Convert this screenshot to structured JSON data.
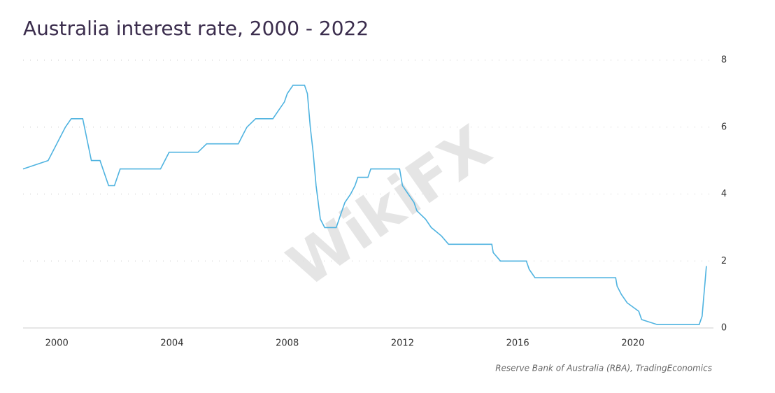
{
  "chart_data": {
    "type": "line",
    "title": "Australia interest rate, 2000 - 2022",
    "source": "Reserve Bank of Australia (RBA), TradingEconomics",
    "watermark": "WikiFX",
    "x": [
      1998.83,
      1999.7,
      2000.3,
      2000.5,
      2000.9,
      2001.2,
      2001.5,
      2001.8,
      2002.0,
      2002.2,
      2003.6,
      2003.9,
      2004.9,
      2005.2,
      2006.3,
      2006.45,
      2006.6,
      2006.9,
      2007.5,
      2007.7,
      2007.9,
      2008.0,
      2008.2,
      2008.6,
      2008.7,
      2008.8,
      2008.9,
      2009.0,
      2009.15,
      2009.3,
      2009.7,
      2009.8,
      2009.9,
      2010.0,
      2010.2,
      2010.35,
      2010.45,
      2010.8,
      2010.9,
      2011.9,
      2011.95,
      2012.0,
      2012.4,
      2012.5,
      2012.8,
      2013.0,
      2013.35,
      2013.6,
      2015.1,
      2015.15,
      2015.4,
      2016.3,
      2016.4,
      2016.6,
      2019.4,
      2019.45,
      2019.6,
      2019.8,
      2020.2,
      2020.3,
      2020.85,
      2022.3,
      2022.4,
      2022.45,
      2022.5,
      2022.55
    ],
    "series": [
      {
        "name": "Interest rate",
        "color": "#4fb3e0",
        "values": [
          4.75,
          5.0,
          6.0,
          6.25,
          6.25,
          5.0,
          5.0,
          4.25,
          4.25,
          4.75,
          4.75,
          5.25,
          5.25,
          5.5,
          5.5,
          5.75,
          6.0,
          6.25,
          6.25,
          6.5,
          6.75,
          7.0,
          7.25,
          7.25,
          7.0,
          6.0,
          5.25,
          4.25,
          3.25,
          3.0,
          3.0,
          3.25,
          3.5,
          3.75,
          4.0,
          4.25,
          4.5,
          4.5,
          4.75,
          4.75,
          4.5,
          4.25,
          3.75,
          3.5,
          3.25,
          3.0,
          2.75,
          2.5,
          2.5,
          2.25,
          2.0,
          2.0,
          1.75,
          1.5,
          1.5,
          1.25,
          1.0,
          0.75,
          0.5,
          0.25,
          0.1,
          0.1,
          0.35,
          0.85,
          1.35,
          1.85
        ]
      }
    ],
    "xlim": [
      1998.83,
      2022.6
    ],
    "xticks": [
      2000,
      2004,
      2008,
      2012,
      2016,
      2020
    ],
    "ylim": [
      0,
      8
    ],
    "yticks": [
      0,
      2,
      4,
      6,
      8
    ],
    "grid": true
  }
}
